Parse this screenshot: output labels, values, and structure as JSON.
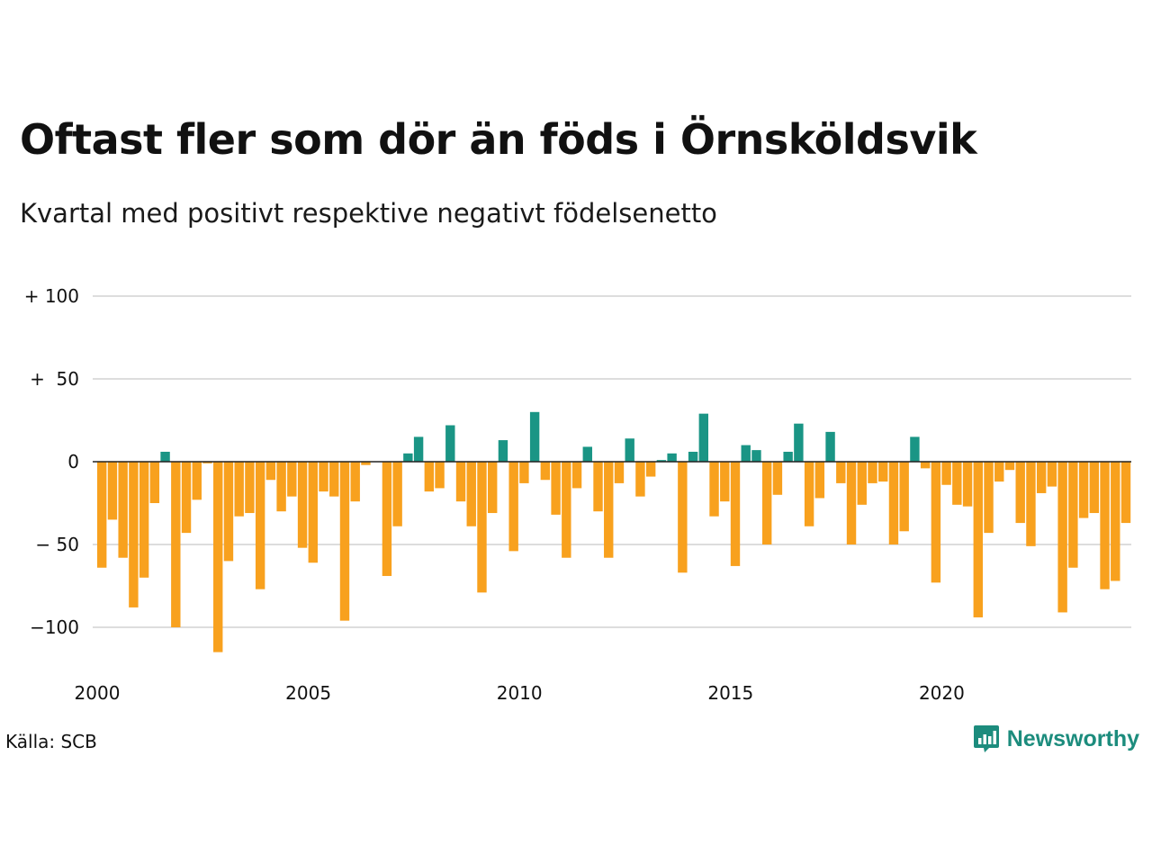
{
  "title": "Oftast fler som dör än föds i Örnsköldsvik",
  "subtitle": "Kvartal med positivt respektive negativt födelsenetto",
  "source": "Källa: SCB",
  "brand": "Newsworthy",
  "colors": {
    "positive": "#1a9585",
    "negative": "#f8a11e",
    "grid": "#dddddd",
    "zero_line": "#222222",
    "brand": "#1c8c7d"
  },
  "chart_data": {
    "type": "bar",
    "x_start": 2000,
    "x_interval": "quarter",
    "x_ticks": [
      "2000",
      "2005",
      "2010",
      "2015",
      "2020"
    ],
    "y_ticks": [
      {
        "value": 100,
        "label": "+ 100"
      },
      {
        "value": 50,
        "label": "+  50"
      },
      {
        "value": 0,
        "label": "0"
      },
      {
        "value": -50,
        "label": "− 50"
      },
      {
        "value": -100,
        "label": "−100"
      }
    ],
    "ylim": [
      -118,
      100
    ],
    "grid": true,
    "values": [
      -64,
      -35,
      -58,
      -88,
      -70,
      -25,
      6,
      -100,
      -43,
      -23,
      -1,
      -115,
      -60,
      -33,
      -31,
      -77,
      -11,
      -30,
      -21,
      -52,
      -61,
      -18,
      -21,
      -96,
      -24,
      -2,
      0,
      -69,
      -39,
      5,
      15,
      -18,
      -16,
      22,
      -24,
      -39,
      -79,
      -31,
      13,
      -54,
      -13,
      30,
      -11,
      -32,
      -58,
      -16,
      9,
      -30,
      -58,
      -13,
      14,
      -21,
      -9,
      1,
      5,
      -67,
      6,
      29,
      -33,
      -24,
      -63,
      10,
      7,
      -50,
      -20,
      6,
      23,
      -39,
      -22,
      18,
      -13,
      -50,
      -26,
      -13,
      -12,
      -50,
      -42,
      15,
      -4,
      -73,
      -14,
      -26,
      -27,
      -94,
      -43,
      -12,
      -5,
      -37,
      -51,
      -19,
      -15,
      -91,
      -64,
      -34,
      -31,
      -77,
      -72,
      -37
    ]
  }
}
